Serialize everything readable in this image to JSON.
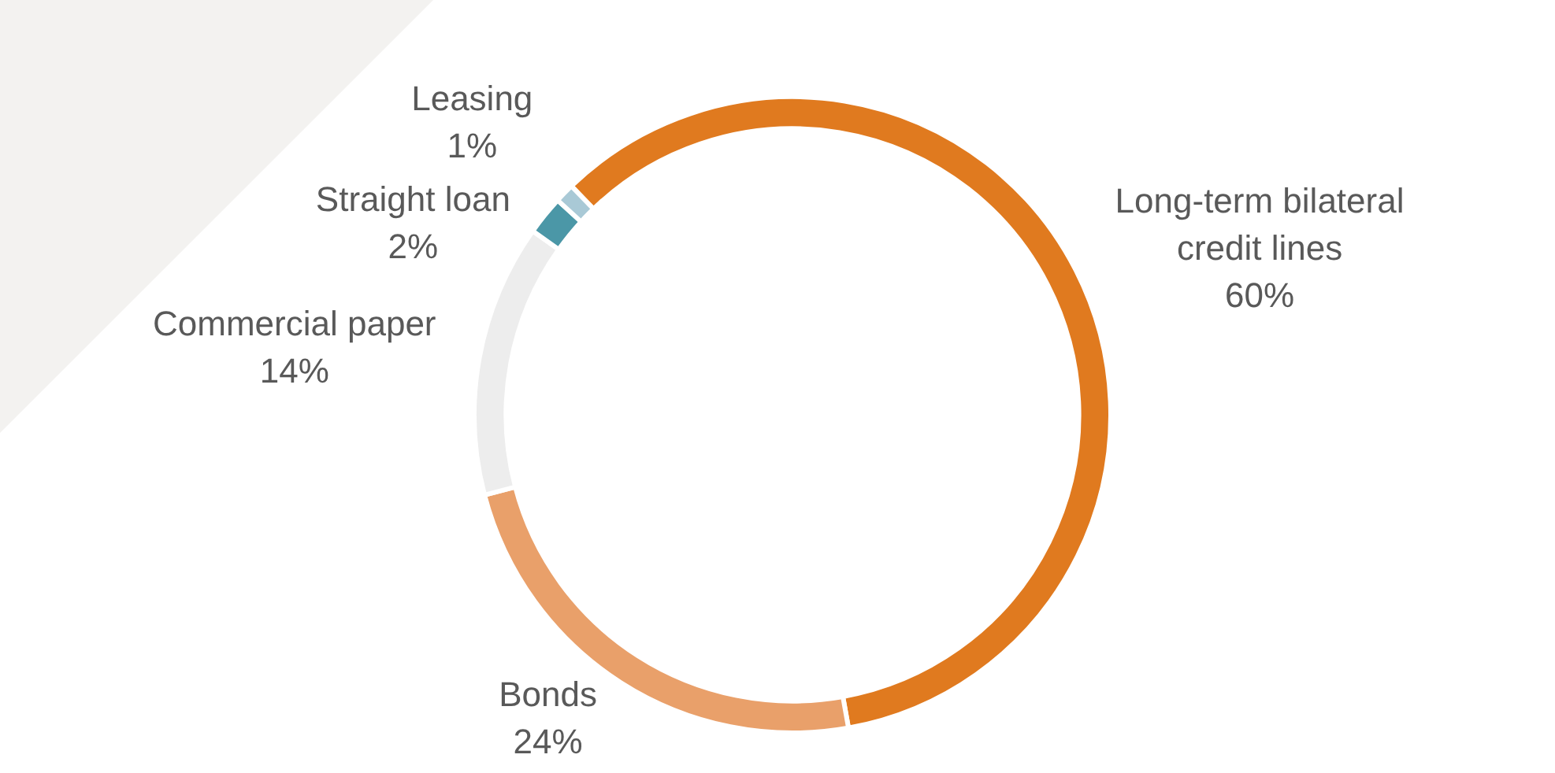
{
  "chart_data": {
    "type": "donut",
    "categories": [
      "Long-term bilateral credit lines",
      "Bonds",
      "Commercial paper",
      "Straight loan",
      "Leasing"
    ],
    "values": [
      60,
      24,
      14,
      2,
      1
    ],
    "value_labels": [
      "60%",
      "24%",
      "14%",
      "2%",
      "1%"
    ],
    "colors": [
      "#e07a1f",
      "#e9a06a",
      "#ededed",
      "#4b97a7",
      "#a9c9d6"
    ],
    "legend": false
  }
}
